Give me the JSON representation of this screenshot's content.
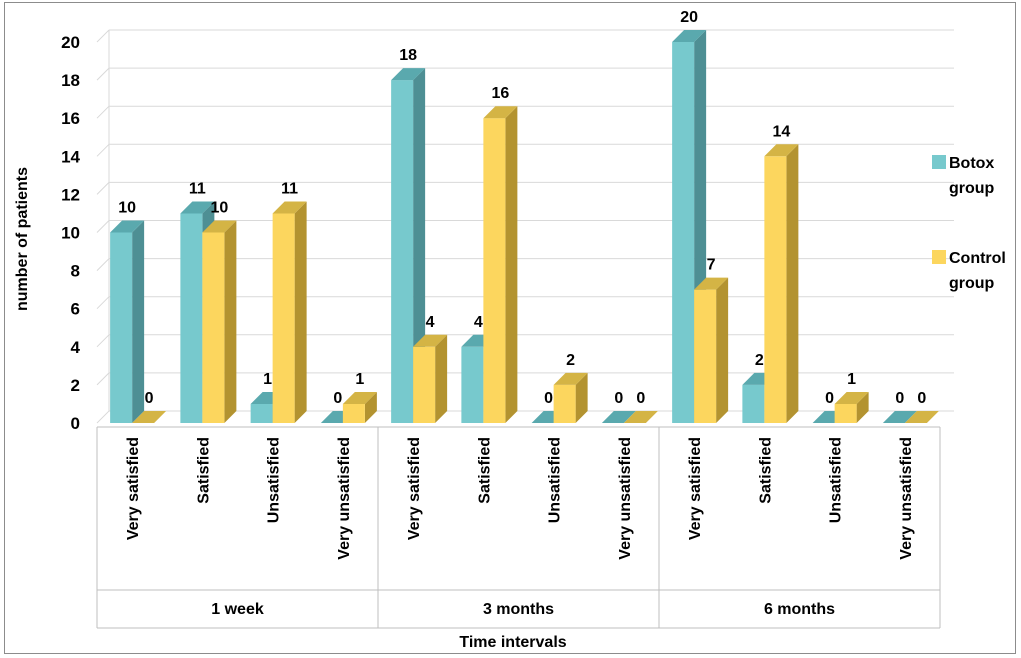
{
  "chart_data": {
    "type": "bar",
    "title": "",
    "xlabel": "Time intervals",
    "ylabel": "number of patients",
    "ylim": [
      0,
      20
    ],
    "yticks": [
      "0",
      "2",
      "4",
      "6",
      "8",
      "10",
      "12",
      "14",
      "16",
      "18",
      "20"
    ],
    "grid": true,
    "legend_position": "right",
    "groups": [
      {
        "label": "1 week",
        "categories": [
          "Very satisfied",
          "Satisfied",
          "Unsatisfied",
          "Very unsatisfied"
        ]
      },
      {
        "label": "3 months",
        "categories": [
          "Very satisfied",
          "Satisfied",
          "Unsatisfied",
          "Very unsatisfied"
        ]
      },
      {
        "label": "6 months",
        "categories": [
          "Very satisfied",
          "Satisfied",
          "Unsatisfied",
          "Very unsatisfied"
        ]
      }
    ],
    "series": [
      {
        "name": "Botox group",
        "legend_lines": [
          "Botox",
          "group"
        ],
        "color": "#77c9cd",
        "side_color": "#4e8f94",
        "top_color": "#5aa9ae",
        "values": [
          10,
          11,
          1,
          0,
          18,
          4,
          0,
          0,
          20,
          2,
          0,
          0
        ],
        "labels": [
          "10",
          "11",
          "1",
          "0",
          "18",
          "4",
          "0",
          "0",
          "20",
          "2",
          "0",
          "0"
        ]
      },
      {
        "name": "Control group",
        "legend_lines": [
          "Control",
          "group"
        ],
        "color": "#fcd65e",
        "side_color": "#b39330",
        "top_color": "#d4b445",
        "values": [
          0,
          10,
          11,
          1,
          4,
          16,
          2,
          0,
          7,
          14,
          1,
          0
        ],
        "labels": [
          "0",
          "10",
          "11",
          "1",
          "4",
          "16",
          "2",
          "0",
          "7",
          "14",
          "1",
          "0"
        ]
      }
    ]
  }
}
